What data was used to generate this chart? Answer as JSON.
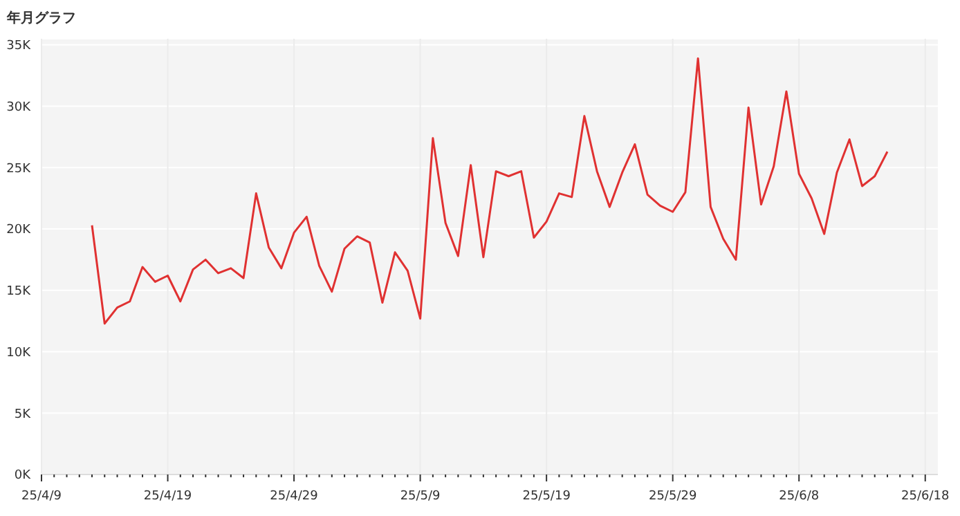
{
  "chart_data": {
    "type": "line",
    "title": "年月グラフ",
    "x": [
      "--04-13",
      "--04-14",
      "--04-15",
      "--04-16",
      "--04-17",
      "--04-18",
      "--04-19",
      "--04-20",
      "--04-21",
      "--04-22",
      "--04-23",
      "--04-24",
      "--04-25",
      "--04-26",
      "--04-27",
      "--04-28",
      "--04-29",
      "--04-30",
      "--05-01",
      "--05-02",
      "--05-03",
      "--05-04",
      "--05-05",
      "--05-06",
      "--05-07",
      "--05-08",
      "--05-09",
      "--05-10",
      "--05-11",
      "--05-12",
      "--05-13",
      "--05-14",
      "--05-15",
      "--05-16",
      "--05-17",
      "--05-18",
      "--05-19",
      "--05-20",
      "--05-21",
      "--05-22",
      "--05-23",
      "--05-24",
      "--05-25",
      "--05-26",
      "--05-27",
      "--05-28",
      "--05-29",
      "--05-30",
      "--05-31",
      "--06-01",
      "--06-02",
      "--06-03",
      "--06-04",
      "--06-05",
      "--06-06",
      "--06-07",
      "--06-08",
      "--06-09",
      "--06-10",
      "--06-11",
      "--06-12",
      "--06-13",
      "--06-14",
      "--06-15"
    ],
    "series": [
      {
        "color": "#e03131",
        "values": [
          20300,
          12300,
          13600,
          14100,
          16900,
          15700,
          16200,
          14100,
          16700,
          17500,
          16400,
          16800,
          16000,
          22900,
          18500,
          16800,
          19700,
          21000,
          17000,
          14900,
          18400,
          19400,
          18900,
          14000,
          18100,
          16600,
          12700,
          27400,
          20500,
          17800,
          25200,
          17700,
          24700,
          24300,
          24700,
          19300,
          20600,
          22900,
          22600,
          29200,
          24700,
          21800,
          24600,
          26900,
          22800,
          21900,
          21400,
          23000,
          33900,
          21800,
          19200,
          17500,
          29900,
          22000,
          25100,
          31200,
          24500,
          22500,
          19600,
          24600,
          27300,
          23500,
          24300,
          26300
        ]
      }
    ],
    "xlim": [
      "--04-09",
      "--06-19"
    ],
    "xticks": [
      {
        "value": "--04-09",
        "label": "25/4/9"
      },
      {
        "value": "--04-10",
        "label": null
      },
      {
        "value": "--04-11",
        "label": null
      },
      {
        "value": "--04-12",
        "label": null
      },
      {
        "value": "--04-13",
        "label": null
      },
      {
        "value": "--04-14",
        "label": null
      },
      {
        "value": "--04-15",
        "label": null
      },
      {
        "value": "--04-16",
        "label": null
      },
      {
        "value": "--04-17",
        "label": null
      },
      {
        "value": "--04-18",
        "label": null
      },
      {
        "value": "--04-19",
        "label": "25/4/19"
      },
      {
        "value": "--04-20",
        "label": null
      },
      {
        "value": "--04-21",
        "label": null
      },
      {
        "value": "--04-22",
        "label": null
      },
      {
        "value": "--04-23",
        "label": null
      },
      {
        "value": "--04-24",
        "label": null
      },
      {
        "value": "--04-25",
        "label": null
      },
      {
        "value": "--04-26",
        "label": null
      },
      {
        "value": "--04-27",
        "label": null
      },
      {
        "value": "--04-28",
        "label": null
      },
      {
        "value": "--04-29",
        "label": "25/4/29"
      },
      {
        "value": "--04-30",
        "label": null
      },
      {
        "value": "--05-01",
        "label": null
      },
      {
        "value": "--05-02",
        "label": null
      },
      {
        "value": "--05-03",
        "label": null
      },
      {
        "value": "--05-04",
        "label": null
      },
      {
        "value": "--05-05",
        "label": null
      },
      {
        "value": "--05-06",
        "label": null
      },
      {
        "value": "--05-07",
        "label": null
      },
      {
        "value": "--05-08",
        "label": null
      },
      {
        "value": "--05-09",
        "label": "25/5/9"
      },
      {
        "value": "--05-10",
        "label": null
      },
      {
        "value": "--05-11",
        "label": null
      },
      {
        "value": "--05-12",
        "label": null
      },
      {
        "value": "--05-13",
        "label": null
      },
      {
        "value": "--05-14",
        "label": null
      },
      {
        "value": "--05-15",
        "label": null
      },
      {
        "value": "--05-16",
        "label": null
      },
      {
        "value": "--05-17",
        "label": null
      },
      {
        "value": "--05-18",
        "label": null
      },
      {
        "value": "--05-19",
        "label": "25/5/19"
      },
      {
        "value": "--05-20",
        "label": null
      },
      {
        "value": "--05-21",
        "label": null
      },
      {
        "value": "--05-22",
        "label": null
      },
      {
        "value": "--05-23",
        "label": null
      },
      {
        "value": "--05-24",
        "label": null
      },
      {
        "value": "--05-25",
        "label": null
      },
      {
        "value": "--05-26",
        "label": null
      },
      {
        "value": "--05-27",
        "label": null
      },
      {
        "value": "--05-28",
        "label": null
      },
      {
        "value": "--05-29",
        "label": "25/5/29"
      },
      {
        "value": "--05-30",
        "label": null
      },
      {
        "value": "--05-31",
        "label": null
      },
      {
        "value": "--06-01",
        "label": null
      },
      {
        "value": "--06-02",
        "label": null
      },
      {
        "value": "--06-03",
        "label": null
      },
      {
        "value": "--06-04",
        "label": null
      },
      {
        "value": "--06-05",
        "label": null
      },
      {
        "value": "--06-06",
        "label": null
      },
      {
        "value": "--06-07",
        "label": null
      },
      {
        "value": "--06-08",
        "label": "25/6/8"
      },
      {
        "value": "--06-09",
        "label": null
      },
      {
        "value": "--06-10",
        "label": null
      },
      {
        "value": "--06-11",
        "label": null
      },
      {
        "value": "--06-12",
        "label": null
      },
      {
        "value": "--06-13",
        "label": null
      },
      {
        "value": "--06-14",
        "label": null
      },
      {
        "value": "--06-15",
        "label": null
      },
      {
        "value": "--06-16",
        "label": null
      },
      {
        "value": "--06-17",
        "label": null
      },
      {
        "value": "--06-18",
        "label": "25/6/18"
      }
    ],
    "ylim": [
      0,
      35500
    ],
    "yticks": [
      {
        "value": 0,
        "label": "0K"
      },
      {
        "value": 5000,
        "label": "5K"
      },
      {
        "value": 10000,
        "label": "10K"
      },
      {
        "value": 15000,
        "label": "15K"
      },
      {
        "value": 20000,
        "label": "20K"
      },
      {
        "value": 25000,
        "label": "25K"
      },
      {
        "value": 30000,
        "label": "30K"
      },
      {
        "value": 35000,
        "label": "35K"
      }
    ],
    "grid": true,
    "legend": false,
    "marker": "none",
    "line_style": "solid"
  }
}
